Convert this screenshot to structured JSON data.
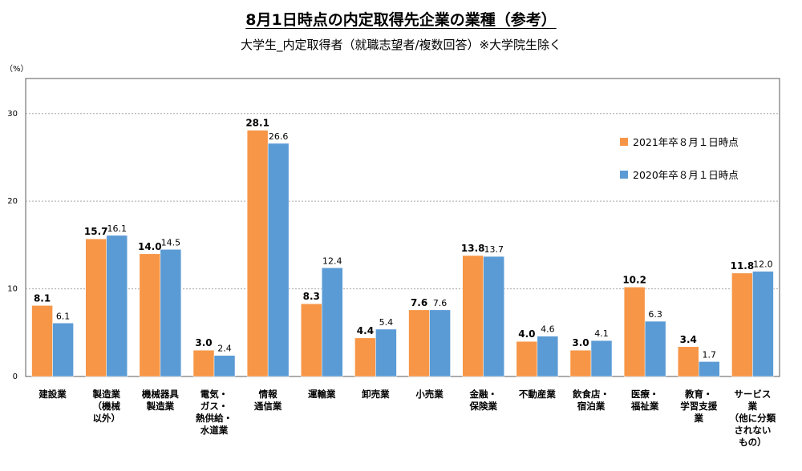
{
  "title": "8月1日時点の内定取得先企業の業種（参考）",
  "subtitle": "大学生_内定取得者（就職志望者/複数回答）※大学院生除く",
  "chart_data": {
    "type": "bar",
    "y_unit_label": "（%）",
    "ylim": [
      0,
      34
    ],
    "yticks": [
      0,
      10,
      20,
      30
    ],
    "grid": true,
    "legend_position": "right",
    "categories": [
      [
        "建設業"
      ],
      [
        "製造業",
        "（機械",
        "以外）"
      ],
      [
        "機械器具",
        "製造業"
      ],
      [
        "電気・",
        "ガス・",
        "熱供給・",
        "水道業"
      ],
      [
        "情報",
        "通信業"
      ],
      [
        "運輸業"
      ],
      [
        "卸売業"
      ],
      [
        "小売業"
      ],
      [
        "金融・",
        "保険業"
      ],
      [
        "不動産業"
      ],
      [
        "飲食店・",
        "宿泊業"
      ],
      [
        "医療・",
        "福祉業"
      ],
      [
        "教育・",
        "学習支援",
        "業"
      ],
      [
        "サービス",
        "業",
        "（他に分類",
        "されない",
        "もの）"
      ]
    ],
    "series": [
      {
        "name": "2021年卒８月１日時点",
        "color": "#F79646",
        "labels_bold": true,
        "values": [
          8.1,
          15.7,
          14.0,
          3.0,
          28.1,
          8.3,
          4.4,
          7.6,
          13.8,
          4.0,
          3.0,
          10.2,
          3.4,
          11.8
        ]
      },
      {
        "name": "2020年卒８月１日時点",
        "color": "#5B9BD5",
        "labels_bold": false,
        "values": [
          6.1,
          16.1,
          14.5,
          2.4,
          26.6,
          12.4,
          5.4,
          7.6,
          13.7,
          4.6,
          4.1,
          6.3,
          1.7,
          12.0
        ]
      }
    ]
  }
}
